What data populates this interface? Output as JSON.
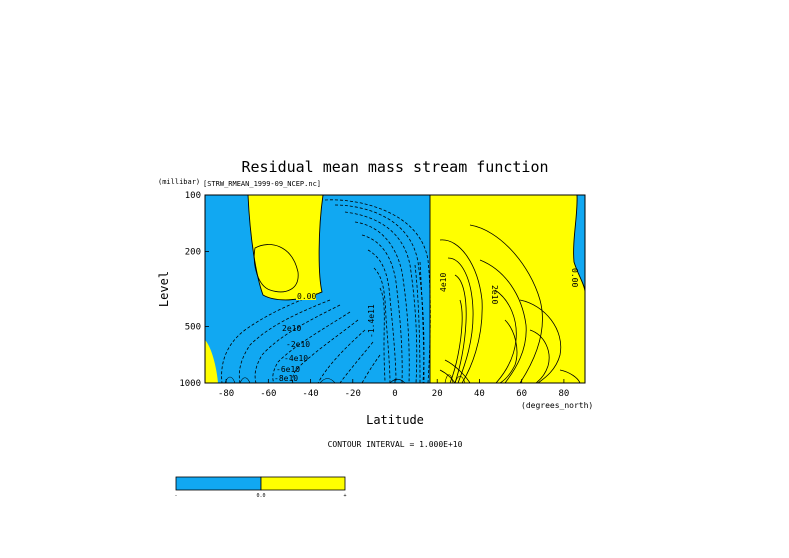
{
  "chart_data": {
    "type": "contour",
    "title": "Residual mean mass stream function",
    "subtitle": "[STRW_RMEAN_1999-09_NCEP.nc]",
    "ylabel": "Level",
    "yunit": "(millibar)",
    "xlabel": "Latitude",
    "xunit": "(degrees_north)",
    "xlim": [
      -90,
      90
    ],
    "ylim": [
      1000,
      100
    ],
    "y_scale": "log",
    "x_ticks": [
      -80,
      -60,
      -40,
      -20,
      0,
      20,
      40,
      60,
      80
    ],
    "y_ticks": [
      100,
      200,
      500,
      1000
    ],
    "contour_interval_text": "CONTOUR INTERVAL = 1.000E+10",
    "contour_labels": [
      "0.00",
      "2e10",
      "-2e10",
      "-4e10",
      "-6e10",
      "-8e10",
      "-1.4e11",
      "4e10",
      "2e10",
      "0.00"
    ],
    "fill_colors": {
      "negative": "#11a8f2",
      "positive": "#ffff00"
    },
    "colorbar": {
      "labels": [
        "-",
        "0.0",
        "+"
      ],
      "colors": [
        "#11a8f2",
        "#ffff00"
      ]
    },
    "grid": false
  }
}
